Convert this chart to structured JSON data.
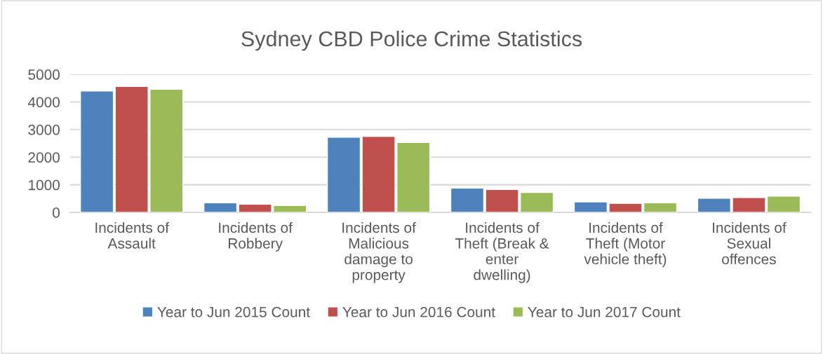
{
  "chart_data": {
    "type": "bar",
    "title": "Sydney CBD Police Crime Statistics",
    "categories": [
      "Incidents of Assault",
      "Incidents of Robbery",
      "Incidents of Malicious damage to property",
      "Incidents of Theft (Break & enter dwelling)",
      "Incidents of Theft (Motor vehicle theft)",
      "Incidents of Sexual offences"
    ],
    "series": [
      {
        "name": "Year to Jun 2015 Count",
        "color": "#4f81bd",
        "values": [
          4400,
          350,
          2720,
          880,
          380,
          510
        ]
      },
      {
        "name": "Year to Jun 2016 Count",
        "color": "#c0504d",
        "values": [
          4560,
          300,
          2750,
          830,
          330,
          540
        ]
      },
      {
        "name": "Year to Jun 2017 Count",
        "color": "#9bbb59",
        "values": [
          4460,
          250,
          2530,
          720,
          350,
          590
        ]
      }
    ],
    "ylim": [
      0,
      5000
    ],
    "yticks": [
      0,
      1000,
      2000,
      3000,
      4000,
      5000
    ],
    "grid": "y",
    "legend": "bottom"
  }
}
